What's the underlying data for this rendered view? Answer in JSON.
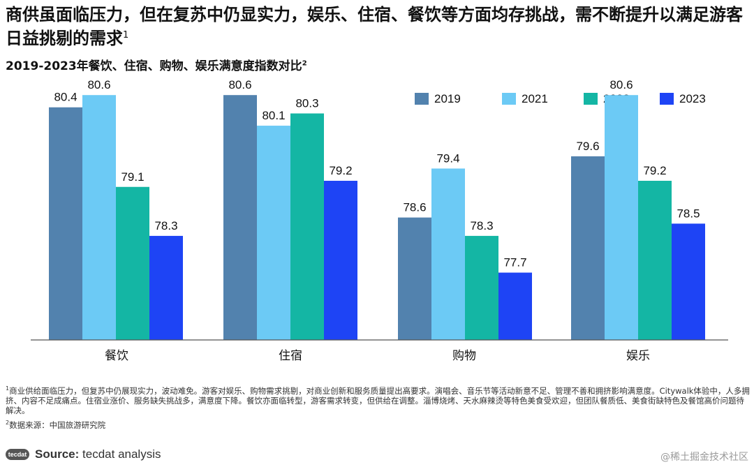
{
  "headline": "商供虽面临压力，但在复苏中仍显实力，娱乐、住宿、餐饮等方面均存挑战，需不断提升以满足游客日益挑剔的需求",
  "headline_sup": "1",
  "footnotes": {
    "note1_marker": "1",
    "note1": "商业供给面临压力，但复苏中仍展现实力，波动难免。游客对娱乐、购物需求挑剔，对商业创新和服务质量提出高要求。演唱会、音乐节等活动新意不足、管理不善和拥挤影响满意度。Citywalk体验中，人多拥挤、内容不足成痛点。住宿业涨价、服务缺失挑战多，满意度下降。餐饮亦面临转型，游客需求转变，但供给在调整。淄博烧烤、天水麻辣烫等特色美食受欢迎，但团队餐质低、美食街缺特色及餐馆高价问题待解决。",
    "note2_marker": "2",
    "note2": "数据来源：中国旅游研究院"
  },
  "source": {
    "logo_text": "tecdat",
    "label": "Source:",
    "text": "tecdat analysis"
  },
  "watermark": "@稀土掘金技术社区",
  "chart_data": {
    "type": "bar",
    "title": "2019-2023年餐饮、住宿、购物、娱乐满意度指数对比",
    "title_sup": "2",
    "categories": [
      "餐饮",
      "住宿",
      "购物",
      "娱乐"
    ],
    "series": [
      {
        "name": "2019",
        "color": "#5282ae",
        "values": [
          80.4,
          80.6,
          78.6,
          79.6
        ]
      },
      {
        "name": "2021",
        "color": "#6ccaf5",
        "values": [
          80.6,
          80.1,
          79.4,
          80.6
        ]
      },
      {
        "name": "2022",
        "color": "#14b6a4",
        "values": [
          79.1,
          80.3,
          78.3,
          79.2
        ]
      },
      {
        "name": "2023",
        "color": "#1e44f5",
        "values": [
          78.3,
          79.2,
          77.7,
          78.5
        ]
      }
    ],
    "ylim": [
      76.6,
      81.2
    ],
    "xlabel": "",
    "ylabel": "",
    "grid": false,
    "legend_position": "top-right"
  }
}
